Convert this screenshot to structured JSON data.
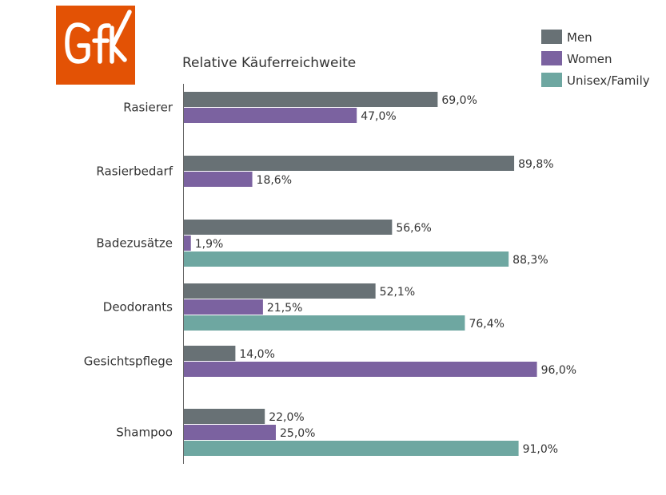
{
  "logo": {
    "text": "GfK",
    "color": "#e35205"
  },
  "colors": {
    "Men": "#687175",
    "Women": "#7b62a0",
    "Unisex/Family": "#6ea7a1"
  },
  "chart_data": {
    "type": "bar",
    "orientation": "horizontal",
    "title": "Relative Käuferreichweite",
    "xlabel": "",
    "ylabel": "",
    "xlim": [
      0,
      100
    ],
    "grid": false,
    "legend": "top-right",
    "categories": [
      "Rasierer",
      "Rasierbedarf",
      "Badezusätze",
      "Deodorants",
      "Gesichtspflege",
      "Shampoo"
    ],
    "series": [
      {
        "name": "Men",
        "values": [
          69.0,
          89.8,
          56.6,
          52.1,
          14.0,
          22.0
        ],
        "labels": [
          "69,0%",
          "89,8%",
          "56,6%",
          "52,1%",
          "14,0%",
          "22,0%"
        ]
      },
      {
        "name": "Women",
        "values": [
          47.0,
          18.6,
          1.9,
          21.5,
          96.0,
          25.0
        ],
        "labels": [
          "47,0%",
          "18,6%",
          "1,9%",
          "21,5%",
          "96,0%",
          "25,0%"
        ]
      },
      {
        "name": "Unisex/Family",
        "values": [
          null,
          null,
          88.3,
          76.4,
          null,
          91.0
        ],
        "labels": [
          null,
          null,
          "88,3%",
          "76,4%",
          null,
          "91,0%"
        ]
      }
    ]
  }
}
